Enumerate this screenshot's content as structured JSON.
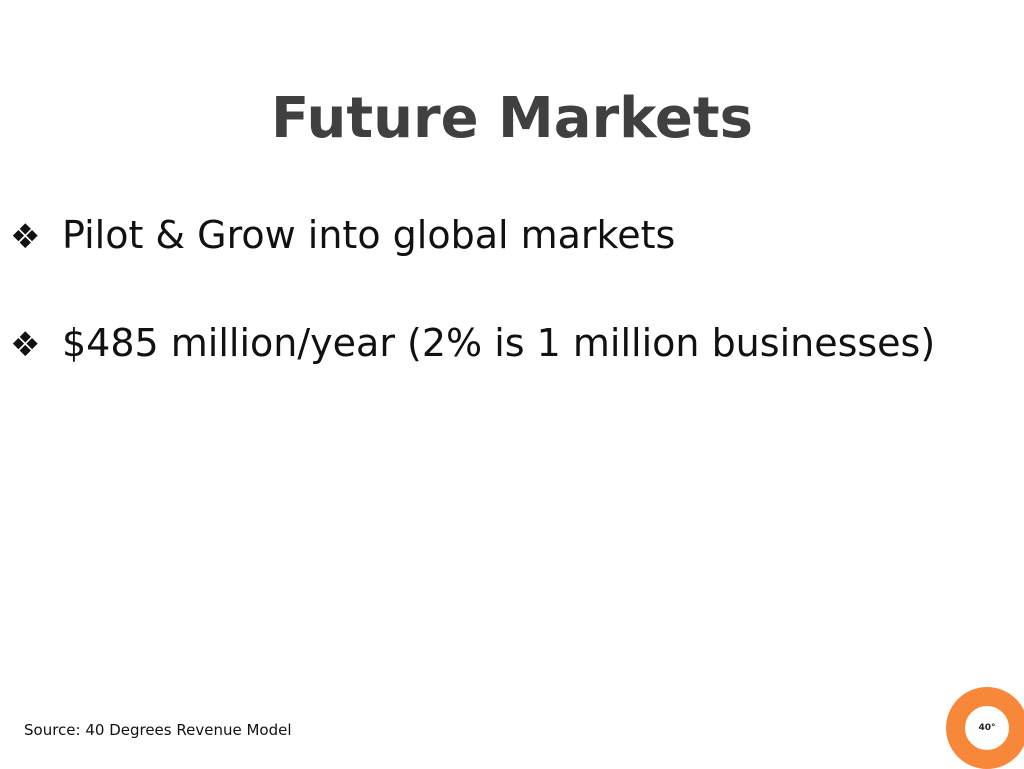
{
  "slide": {
    "title": "Future Markets",
    "bullets": [
      {
        "icon": "diamond-bullet-icon",
        "mark": "❖",
        "text": "Pilot & Grow into global markets"
      },
      {
        "icon": "diamond-bullet-icon",
        "mark": "❖",
        "text": "$485 million/year (2% is 1 million businesses)"
      }
    ],
    "source": "Source: 40 Degrees Revenue Model",
    "logo": {
      "text": "40°",
      "color": "#f7883a"
    }
  }
}
